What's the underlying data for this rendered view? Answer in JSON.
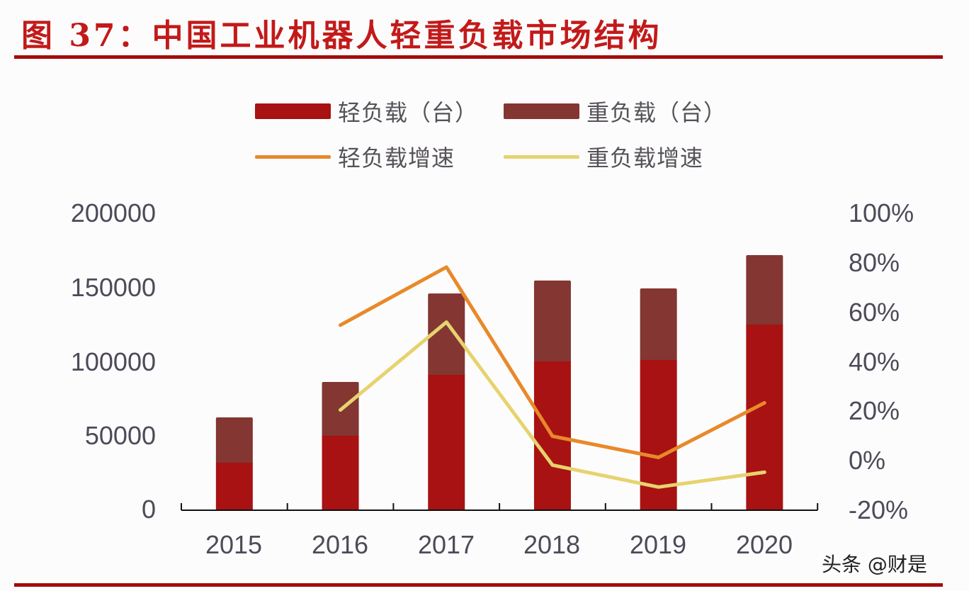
{
  "title": "图 37：中国工业机器人轻重负载市场结构",
  "legend": {
    "light_bar": "轻负载（台）",
    "heavy_bar": "重负载（台）",
    "light_line": "轻负载增速",
    "heavy_line": "重负载增速"
  },
  "colors": {
    "title": "#c21a1a",
    "rule": "#a30c0c",
    "light_bar": "#a81212",
    "heavy_bar": "#833632",
    "light_line": "#e8892a",
    "heavy_line": "#e6d36e",
    "axis_text": "#4e4a58"
  },
  "left_axis": {
    "ticks": [
      "200000",
      "150000",
      "100000",
      "50000",
      "0"
    ]
  },
  "right_axis": {
    "ticks": [
      "100%",
      "80%",
      "60%",
      "40%",
      "20%",
      "0%",
      "-20%"
    ]
  },
  "x_axis": {
    "ticks": [
      "2015",
      "2016",
      "2017",
      "2018",
      "2019",
      "2020"
    ]
  },
  "watermark": "头条 @财是",
  "chart_data": {
    "type": "bar",
    "title": "图 37：中国工业机器人轻重负载市场结构",
    "categories": [
      "2015",
      "2016",
      "2017",
      "2018",
      "2019",
      "2020"
    ],
    "series": [
      {
        "name": "轻负载（台）",
        "type": "bar",
        "stack": "units",
        "axis": "left",
        "values": [
          31600,
          49800,
          90900,
          100000,
          101000,
          124900
        ]
      },
      {
        "name": "重负载（台）",
        "type": "bar",
        "stack": "units",
        "axis": "left",
        "values": [
          30600,
          36300,
          55000,
          54600,
          48300,
          46900
        ]
      },
      {
        "name": "轻负载增速",
        "type": "line",
        "axis": "right",
        "values": [
          null,
          0.547,
          0.782,
          0.097,
          0.011,
          0.232
        ]
      },
      {
        "name": "重负载增速",
        "type": "line",
        "axis": "right",
        "values": [
          null,
          0.203,
          0.559,
          -0.02,
          -0.109,
          -0.049
        ]
      }
    ],
    "xlabel": "",
    "ylabel": "",
    "ylim": [
      0,
      200000
    ],
    "y2lim": [
      -0.2,
      1.0
    ],
    "grid": false,
    "legend_position": "top"
  }
}
